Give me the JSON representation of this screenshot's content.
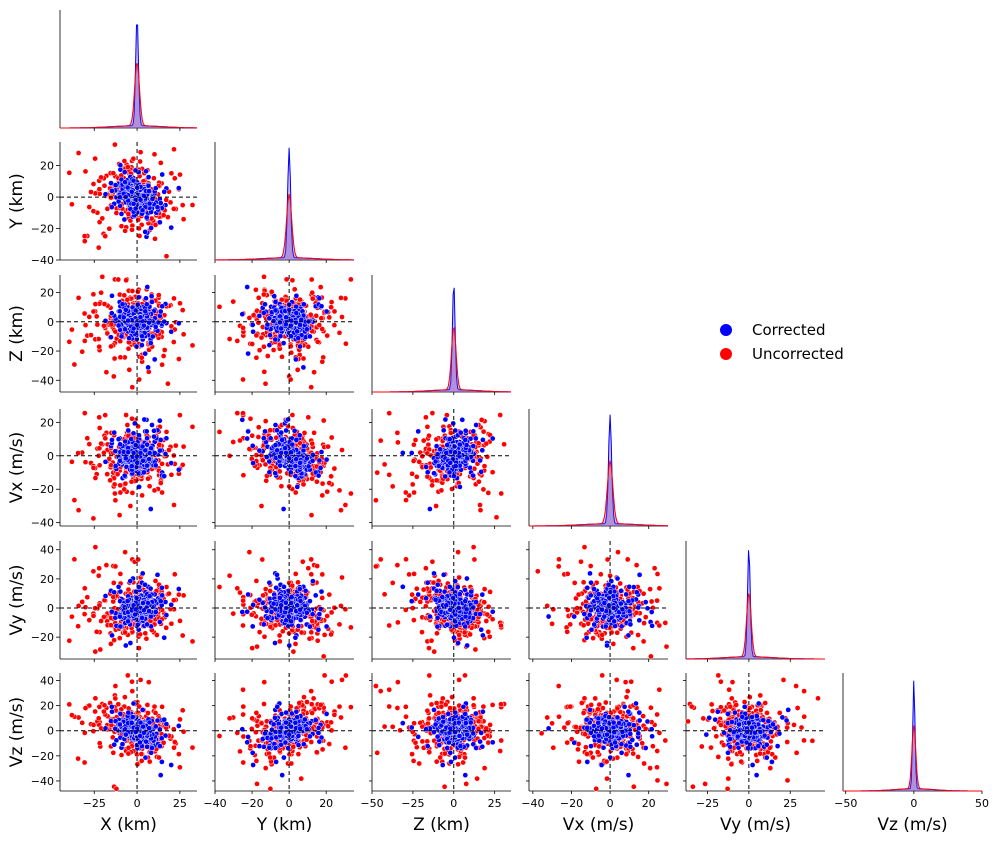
{
  "chart_data": {
    "type": "scatter",
    "title": "",
    "variables": [
      {
        "key": "x",
        "label": "X (km)",
        "range": [
          -45,
          35
        ],
        "ticks": [
          -25,
          0,
          25
        ],
        "tick_labels": [
          "−25",
          "0",
          "25"
        ]
      },
      {
        "key": "y",
        "label": "Y (km)",
        "range": [
          -40,
          35
        ],
        "ticks": [
          -40,
          -20,
          0,
          20
        ],
        "tick_labels": [
          "−40",
          "−20",
          "0",
          "20"
        ]
      },
      {
        "key": "z",
        "label": "Z (km)",
        "range": [
          -50,
          35
        ],
        "ticks": [
          -50,
          -25,
          0,
          25
        ],
        "tick_labels": [
          "−50",
          "−25",
          "0",
          "25"
        ]
      },
      {
        "key": "vx",
        "label": "Vx (m/s)",
        "range": [
          -42,
          30
        ],
        "ticks": [
          -40,
          -20,
          0,
          20
        ],
        "tick_labels": [
          "−40",
          "−20",
          "0",
          "20"
        ]
      },
      {
        "key": "vy",
        "label": "Vy (m/s)",
        "range": [
          -38,
          46
        ],
        "ticks": [
          -25,
          0,
          25
        ],
        "tick_labels": [
          "−25",
          "0",
          "25"
        ]
      },
      {
        "key": "vz",
        "label": "Vz (m/s)",
        "range": [
          -52,
          50
        ],
        "ticks": [
          -50,
          0,
          50
        ],
        "tick_labels": [
          "−50",
          "0",
          "50"
        ]
      }
    ],
    "y_ticks": {
      "y": {
        "ticks": [
          -40,
          -20,
          0,
          20
        ],
        "tick_labels": [
          "−40",
          "−20",
          "0",
          "20"
        ]
      },
      "z": {
        "ticks": [
          -40,
          -20,
          0,
          20
        ],
        "tick_labels": [
          "−40",
          "−20",
          "0",
          "20"
        ]
      },
      "vx": {
        "ticks": [
          -40,
          -20,
          0,
          20
        ],
        "tick_labels": [
          "−40",
          "−20",
          "0",
          "20"
        ]
      },
      "vy": {
        "ticks": [
          -20,
          0,
          20,
          40
        ],
        "tick_labels": [
          "−20",
          "0",
          "20",
          "40"
        ]
      },
      "vz": {
        "ticks": [
          -40,
          -20,
          0,
          20,
          40
        ],
        "tick_labels": [
          "−40",
          "−20",
          "0",
          "20",
          "40"
        ]
      }
    },
    "y_ranges": {
      "y": [
        -40,
        35
      ],
      "z": [
        -48,
        32
      ],
      "vx": [
        -42,
        28
      ],
      "vy": [
        -35,
        46
      ],
      "vz": [
        -48,
        46
      ]
    },
    "series": [
      {
        "name": "Corrected",
        "color": "#0000ff",
        "scale": 0.55
      },
      {
        "name": "Uncorrected",
        "color": "#ff0000",
        "scale": 1.25
      }
    ],
    "legend": {
      "entries": [
        "Corrected",
        "Uncorrected"
      ],
      "placement": "center-right"
    },
    "reference_lines": {
      "x": 0,
      "y": 0,
      "style": "dashed"
    },
    "diagonal": "kde",
    "layout": "corner"
  },
  "colors": {
    "corrected": "#0000ff",
    "uncorrected": "#ff0000",
    "kde_fill": "#7b3fbf"
  }
}
